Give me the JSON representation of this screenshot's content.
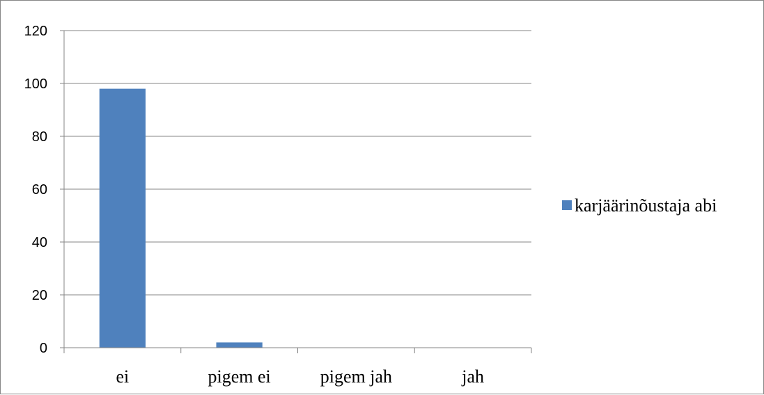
{
  "chart_data": {
    "type": "bar",
    "categories": [
      "ei",
      "pigem ei",
      "pigem jah",
      "jah"
    ],
    "series": [
      {
        "name": "karjäärinõustaja abi",
        "values": [
          98,
          2,
          0,
          0
        ],
        "color": "#4F81BD"
      }
    ],
    "yticks": [
      "0",
      "20",
      "40",
      "60",
      "80",
      "100",
      "120"
    ],
    "ylim": [
      0,
      120
    ],
    "grid": true,
    "legend_position": "right",
    "gridline_color": "#868686",
    "axis_color": "#868686"
  }
}
